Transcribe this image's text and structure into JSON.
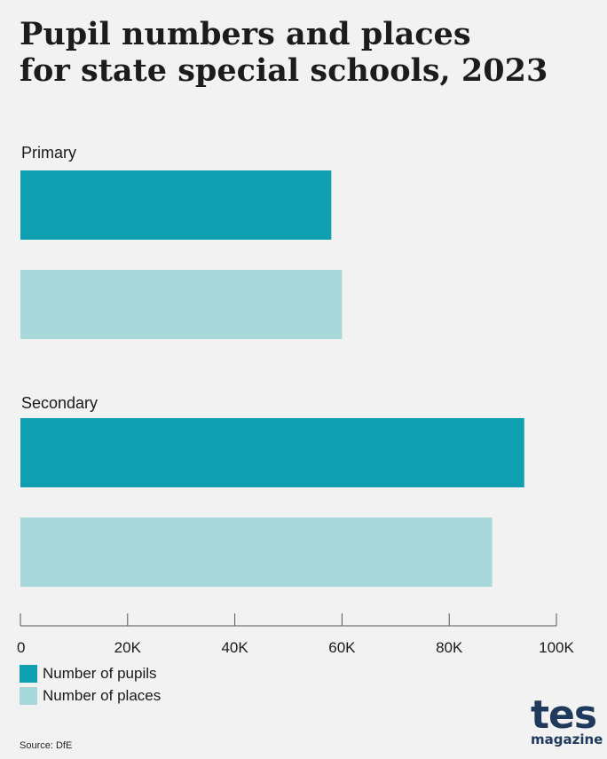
{
  "title_lines": [
    "Pupil numbers and places",
    "for state special schools, 2023"
  ],
  "source": "Source: DfE",
  "logo": {
    "main": "tes",
    "sub": "magazine"
  },
  "colors": {
    "pupils": "#0ea0b0",
    "places": "#a8d8da",
    "axis": "#555555",
    "text": "#1a1a1a"
  },
  "chart_data": {
    "type": "bar",
    "orientation": "horizontal",
    "categories": [
      "Primary",
      "Secondary"
    ],
    "series": [
      {
        "name": "Number of pupils",
        "values": [
          58000,
          94000
        ]
      },
      {
        "name": "Number of places",
        "values": [
          60000,
          88000
        ]
      }
    ],
    "xlim": [
      0,
      100000
    ],
    "ticks": [
      0,
      20000,
      40000,
      60000,
      80000,
      100000
    ],
    "tick_labels": [
      "0",
      "20K",
      "40K",
      "60K",
      "80K",
      "100K"
    ],
    "grid": false,
    "legend_position": "bottom-left"
  }
}
